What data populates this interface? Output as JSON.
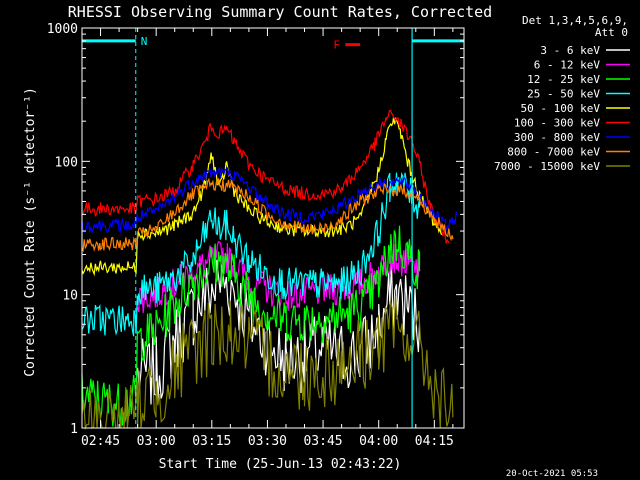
{
  "chart_data": {
    "type": "line",
    "title": "RHESSI Observing Summary Count Rates, Corrected",
    "xlabel": "Start Time (25-Jun-13 02:43:22)",
    "ylabel": "Corrected Count Rate (s⁻¹ detector⁻¹)",
    "y_scale": "log",
    "ylim": [
      1,
      1000
    ],
    "xlim_minutes": [
      -5,
      98
    ],
    "x_ticks": [
      {
        "label": "02:45",
        "min": 0
      },
      {
        "label": "03:00",
        "min": 15
      },
      {
        "label": "03:15",
        "min": 30
      },
      {
        "label": "03:30",
        "min": 45
      },
      {
        "label": "03:45",
        "min": 60
      },
      {
        "label": "04:00",
        "min": 75
      },
      {
        "label": "04:15",
        "min": 90
      }
    ],
    "y_tick_labels": [
      {
        "label": "1",
        "v": 1
      },
      {
        "label": "10",
        "v": 10
      },
      {
        "label": "100",
        "v": 100
      },
      {
        "label": "1000",
        "v": 1000
      }
    ],
    "legend_header": [
      "Det 1,3,4,5,6,9,",
      "Att 0"
    ],
    "legend_position": "right",
    "annotations": {
      "night_label": "N",
      "flare_label": "F",
      "night_bars_minutes": [
        [
          -5,
          9.5
        ],
        [
          84,
          98
        ]
      ],
      "night_bars_y": 800,
      "flare_bar_minutes": [
        66,
        70
      ],
      "flare_bar_y": 750,
      "night_edges_minutes": [
        9.5,
        84
      ],
      "orbit_edges_minutes": [
        -5,
        84
      ],
      "attenuator_edge_minutes": 98,
      "night_color": "#00ffff",
      "flare_color": "#ff0000"
    },
    "time_stamp": "20-Oct-2021 05:53",
    "series": [
      {
        "name": "3 - 6 keV",
        "color": "#ffffff",
        "points": [
          [
            10,
            2.5
          ],
          [
            15,
            2.6
          ],
          [
            20,
            4.5
          ],
          [
            25,
            7.5
          ],
          [
            30,
            11
          ],
          [
            33,
            13
          ],
          [
            36,
            11
          ],
          [
            40,
            6.5
          ],
          [
            45,
            4.5
          ],
          [
            50,
            3.2
          ],
          [
            55,
            3.5
          ],
          [
            60,
            4.0
          ],
          [
            65,
            3.5
          ],
          [
            70,
            3.6
          ],
          [
            75,
            5.5
          ],
          [
            78,
            9
          ],
          [
            80,
            10
          ],
          [
            83,
            8
          ],
          [
            86,
            6
          ]
        ]
      },
      {
        "name": "6 - 12 keV",
        "color": "#ff00ff",
        "points": [
          [
            10,
            9.5
          ],
          [
            15,
            10
          ],
          [
            20,
            12
          ],
          [
            25,
            15
          ],
          [
            30,
            18
          ],
          [
            33,
            20
          ],
          [
            36,
            17
          ],
          [
            40,
            13
          ],
          [
            45,
            11
          ],
          [
            50,
            10
          ],
          [
            55,
            10
          ],
          [
            60,
            11
          ],
          [
            65,
            11
          ],
          [
            70,
            12
          ],
          [
            75,
            15
          ],
          [
            78,
            19
          ],
          [
            80,
            19
          ],
          [
            83,
            17
          ],
          [
            86,
            15
          ]
        ]
      },
      {
        "name": "12 - 25 keV",
        "color": "#00ff00",
        "points": [
          [
            -5,
            1.8
          ],
          [
            0,
            1.6
          ],
          [
            5,
            1.5
          ],
          [
            9,
            1.7
          ],
          [
            10,
            4.5
          ],
          [
            15,
            5.5
          ],
          [
            20,
            8.5
          ],
          [
            25,
            13
          ],
          [
            30,
            17
          ],
          [
            33,
            17
          ],
          [
            36,
            14
          ],
          [
            40,
            10
          ],
          [
            45,
            7.5
          ],
          [
            50,
            6.5
          ],
          [
            55,
            6.5
          ],
          [
            60,
            6.5
          ],
          [
            65,
            7
          ],
          [
            70,
            8
          ],
          [
            75,
            12
          ],
          [
            78,
            22
          ],
          [
            80,
            25
          ],
          [
            83,
            20
          ],
          [
            86,
            15
          ]
        ]
      },
      {
        "name": "25 - 50 keV",
        "color": "#00ffff",
        "points": [
          [
            -5,
            6.5
          ],
          [
            0,
            6.5
          ],
          [
            5,
            6.5
          ],
          [
            9,
            6.5
          ],
          [
            10,
            11
          ],
          [
            15,
            11
          ],
          [
            20,
            13.5
          ],
          [
            25,
            18
          ],
          [
            28,
            28
          ],
          [
            30,
            38
          ],
          [
            32,
            31
          ],
          [
            34,
            33
          ],
          [
            36,
            26
          ],
          [
            40,
            18
          ],
          [
            45,
            14
          ],
          [
            50,
            12
          ],
          [
            55,
            12
          ],
          [
            60,
            12
          ],
          [
            65,
            12
          ],
          [
            70,
            15
          ],
          [
            75,
            30
          ],
          [
            78,
            65
          ],
          [
            80,
            75
          ],
          [
            83,
            60
          ],
          [
            86,
            45
          ]
        ]
      },
      {
        "name": "50 - 100 keV",
        "color": "#ffff00",
        "points": [
          [
            -5,
            16
          ],
          [
            0,
            16
          ],
          [
            5,
            16
          ],
          [
            9,
            16
          ],
          [
            10,
            29
          ],
          [
            15,
            29
          ],
          [
            20,
            33
          ],
          [
            25,
            41
          ],
          [
            28,
            65
          ],
          [
            30,
            115
          ],
          [
            32,
            60
          ],
          [
            34,
            95
          ],
          [
            36,
            60
          ],
          [
            40,
            43
          ],
          [
            45,
            35
          ],
          [
            50,
            31
          ],
          [
            55,
            30
          ],
          [
            60,
            30
          ],
          [
            65,
            31
          ],
          [
            70,
            37
          ],
          [
            75,
            85
          ],
          [
            77,
            150
          ],
          [
            79,
            210
          ],
          [
            81,
            160
          ],
          [
            83,
            95
          ],
          [
            86,
            55
          ],
          [
            90,
            35
          ],
          [
            92,
            28
          ]
        ]
      },
      {
        "name": "100 - 300 keV",
        "color": "#ff0000",
        "points": [
          [
            -5,
            44
          ],
          [
            0,
            44
          ],
          [
            5,
            44
          ],
          [
            9,
            44
          ],
          [
            10,
            50
          ],
          [
            15,
            52
          ],
          [
            20,
            60
          ],
          [
            25,
            95
          ],
          [
            28,
            135
          ],
          [
            30,
            185
          ],
          [
            32,
            160
          ],
          [
            34,
            175
          ],
          [
            36,
            140
          ],
          [
            40,
            95
          ],
          [
            45,
            72
          ],
          [
            50,
            62
          ],
          [
            55,
            57
          ],
          [
            60,
            57
          ],
          [
            65,
            62
          ],
          [
            70,
            90
          ],
          [
            74,
            135
          ],
          [
            77,
            210
          ],
          [
            79,
            225
          ],
          [
            81,
            190
          ],
          [
            84,
            140
          ],
          [
            86,
            95
          ],
          [
            89,
            45
          ],
          [
            92,
            30
          ],
          [
            94,
            25
          ]
        ]
      },
      {
        "name": "300 - 800 keV",
        "color": "#0000ff",
        "points": [
          [
            -5,
            33
          ],
          [
            0,
            33
          ],
          [
            5,
            33
          ],
          [
            9,
            33
          ],
          [
            10,
            38
          ],
          [
            15,
            42
          ],
          [
            20,
            54
          ],
          [
            25,
            72
          ],
          [
            30,
            82
          ],
          [
            35,
            82
          ],
          [
            40,
            65
          ],
          [
            45,
            48
          ],
          [
            50,
            40
          ],
          [
            55,
            38
          ],
          [
            60,
            40
          ],
          [
            65,
            46
          ],
          [
            70,
            58
          ],
          [
            75,
            68
          ],
          [
            80,
            70
          ],
          [
            84,
            65
          ],
          [
            86,
            55
          ],
          [
            90,
            40
          ],
          [
            93,
            33
          ],
          [
            95,
            34
          ],
          [
            96,
            40
          ]
        ]
      },
      {
        "name": "800 - 7000 keV",
        "color": "#ff8000",
        "points": [
          [
            -5,
            24
          ],
          [
            0,
            24
          ],
          [
            5,
            24
          ],
          [
            9,
            24
          ],
          [
            10,
            28
          ],
          [
            15,
            31
          ],
          [
            20,
            42
          ],
          [
            25,
            57
          ],
          [
            30,
            67
          ],
          [
            35,
            66
          ],
          [
            40,
            54
          ],
          [
            45,
            40
          ],
          [
            50,
            34
          ],
          [
            55,
            31
          ],
          [
            60,
            31
          ],
          [
            65,
            37
          ],
          [
            70,
            50
          ],
          [
            75,
            60
          ],
          [
            80,
            61
          ],
          [
            84,
            58
          ],
          [
            87,
            47
          ],
          [
            90,
            37
          ],
          [
            93,
            30
          ],
          [
            95,
            26
          ]
        ]
      },
      {
        "name": "7000 - 15000 keV",
        "color": "#808000",
        "points": [
          [
            -5,
            1
          ],
          [
            0,
            1.15
          ],
          [
            5,
            1.1
          ],
          [
            9,
            1.2
          ],
          [
            10,
            1.6
          ],
          [
            15,
            1.9
          ],
          [
            20,
            2.6
          ],
          [
            25,
            3.8
          ],
          [
            30,
            5.2
          ],
          [
            35,
            5.3
          ],
          [
            40,
            4.4
          ],
          [
            45,
            3.3
          ],
          [
            50,
            2.7
          ],
          [
            55,
            2.6
          ],
          [
            60,
            2.7
          ],
          [
            65,
            3
          ],
          [
            70,
            3.6
          ],
          [
            75,
            4.5
          ],
          [
            80,
            5.2
          ],
          [
            84,
            4.8
          ],
          [
            88,
            3
          ],
          [
            92,
            1.5
          ],
          [
            95,
            1.2
          ]
        ]
      }
    ]
  }
}
